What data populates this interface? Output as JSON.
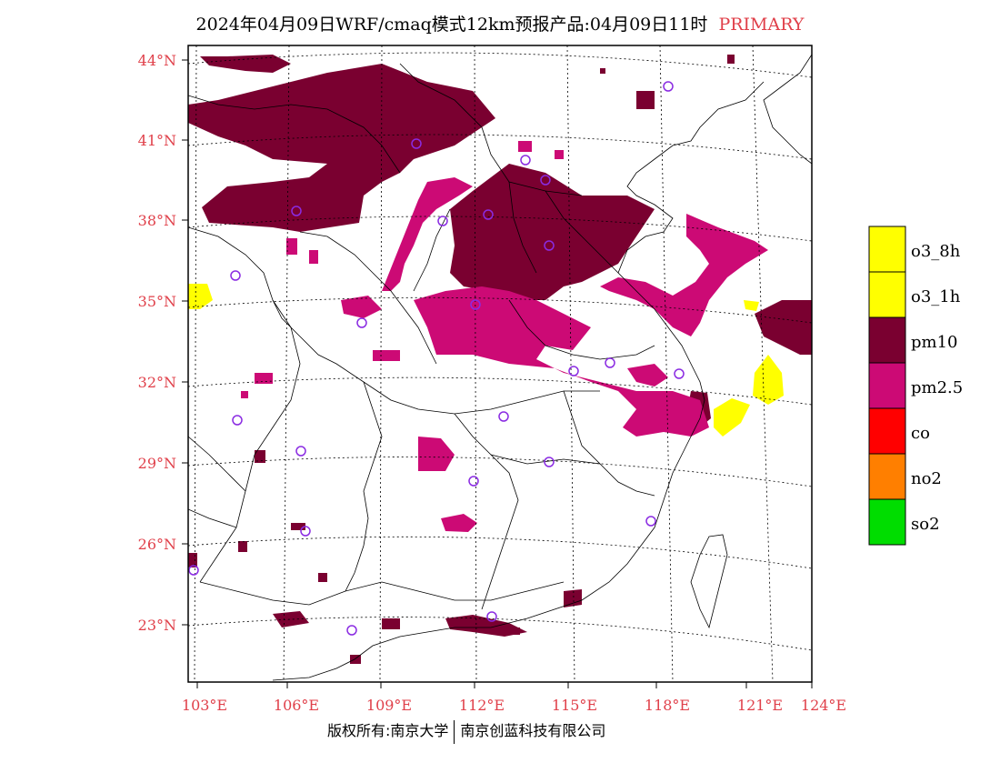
{
  "title": {
    "text": "2024年04月09日WRF/cmaq模式12km预报产品:04月09日11时",
    "tag": "PRIMARY"
  },
  "axes": {
    "lon_ticks": [
      "103°E",
      "106°E",
      "109°E",
      "112°E",
      "115°E",
      "118°E",
      "121°E",
      "124°E"
    ],
    "lat_ticks": [
      "44°N",
      "41°N",
      "38°N",
      "35°N",
      "32°N",
      "29°N",
      "26°N",
      "23°N"
    ],
    "tick_color": "#e0404a"
  },
  "legend": {
    "items": [
      {
        "label": "o3_8h",
        "color": "#ffff00"
      },
      {
        "label": "o3_1h",
        "color": "#ffff00"
      },
      {
        "label": "pm10",
        "color": "#7a0030"
      },
      {
        "label": "pm2.5",
        "color": "#cc0a75"
      },
      {
        "label": "co",
        "color": "#ff0000"
      },
      {
        "label": "no2",
        "color": "#ff7f00"
      },
      {
        "label": "so2",
        "color": "#00dd00"
      }
    ]
  },
  "footer": {
    "left": "版权所有:南京大学",
    "right": "南京创蓝科技有限公司"
  },
  "colors": {
    "pm10": "#7a0030",
    "pm25": "#cc0a75",
    "o3": "#ffff00",
    "station": "#8a2be2"
  }
}
